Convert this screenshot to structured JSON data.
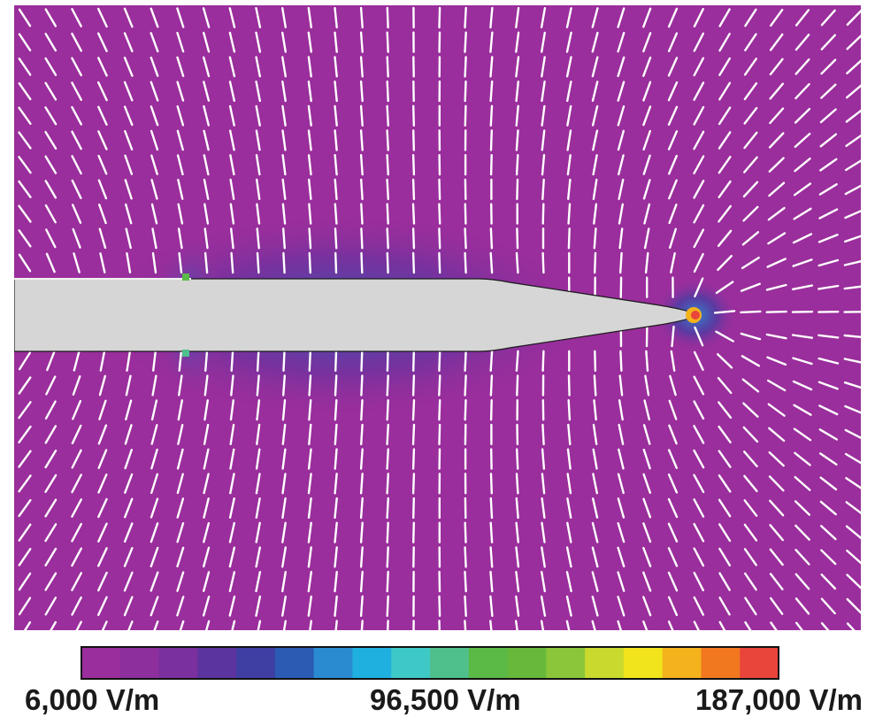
{
  "colorbar": {
    "labels": {
      "min": "6,000 V/m",
      "mid": "96,500 V/m",
      "max": "187,000 V/m"
    },
    "range_v_per_m": [
      6000,
      187000
    ],
    "colors": [
      "#9a2e9c",
      "#8d2f9d",
      "#7a309e",
      "#5c349f",
      "#3f3fa3",
      "#2b5bb3",
      "#2b8bd0",
      "#1fb0e0",
      "#3ec8c6",
      "#4fbf8b",
      "#5bb946",
      "#67b83b",
      "#8bc63a",
      "#c9d92e",
      "#f1e41c",
      "#f4b21c",
      "#f1781f",
      "#e9453a"
    ]
  },
  "field_plot": {
    "background_color": "#9a2e9c",
    "electrode_color": "#d6d6d6",
    "field_line_color": "#ffffff",
    "hotspot_colors": [
      "#f4b21c",
      "#e9453a",
      "#4fbf8b",
      "#5bb946"
    ]
  }
}
